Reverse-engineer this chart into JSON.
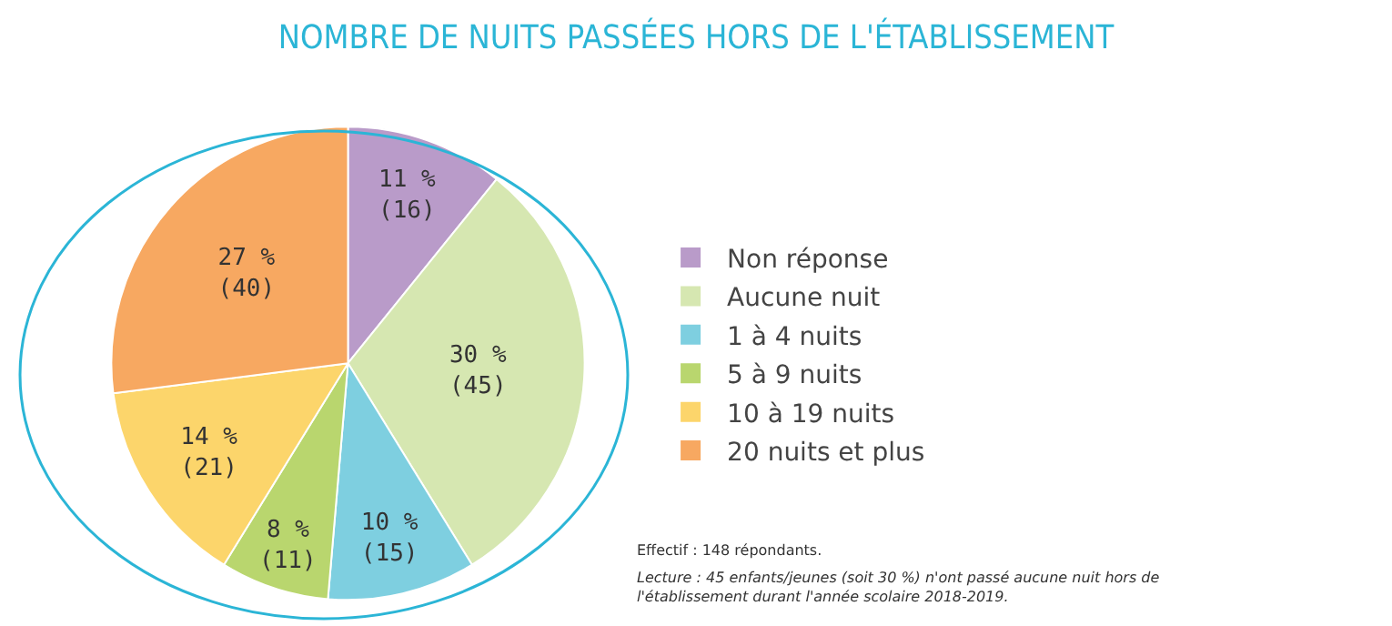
{
  "chart_data": {
    "type": "pie",
    "title": "NOMBRE DE NUITS PASSÉES HORS DE L'ÉTABLISSEMENT",
    "categories": [
      "Non réponse",
      "Aucune nuit",
      "1 à 4 nuits",
      "5 à 9 nuits",
      "10 à 19 nuits",
      "20 nuits et plus"
    ],
    "values": [
      16,
      45,
      15,
      11,
      21,
      40
    ],
    "value_labels": [
      "11 %\n(16)",
      "30 %\n(45)",
      "10 %\n(15)",
      "8 %\n(11)",
      "14 %\n(21)",
      "27 %\n(40)"
    ],
    "colors": [
      "#b99bc9",
      "#d6e7b1",
      "#7ecfe0",
      "#b9d66e",
      "#fcd56b",
      "#f7a861"
    ],
    "legend": "right",
    "annotations": [
      "Effectif : 148 répondants.",
      "Lecture : 45 enfants/jeunes (soit 30 %) n'ont passé aucune nuit hors de l'établissement durant l'année scolaire 2018-2019."
    ]
  }
}
